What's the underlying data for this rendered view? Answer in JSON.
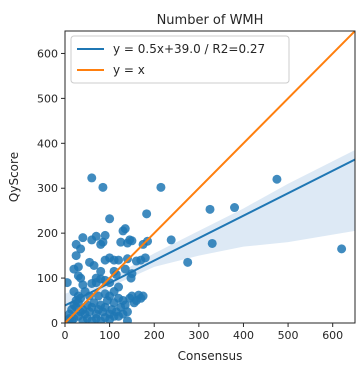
{
  "chart_data": {
    "type": "scatter",
    "title": "Number of WMH",
    "xlabel": "Consensus",
    "ylabel": "QyScore",
    "xlim": [
      0,
      650
    ],
    "ylim": [
      0,
      650
    ],
    "xticks": [
      0,
      100,
      200,
      300,
      400,
      500,
      600
    ],
    "yticks": [
      0,
      100,
      200,
      300,
      400,
      500,
      600
    ],
    "grid": false,
    "legend_position": "top-left",
    "colors": {
      "points": "#1f77b4",
      "fit": "#1f77b4",
      "identity": "#ff7f0e",
      "band": "#c6dbef"
    },
    "fit": {
      "label": "y = 0.5x+39.0 / R2=0.27",
      "slope": 0.5,
      "intercept": 39.0
    },
    "identity": {
      "label": "y = x"
    },
    "band": {
      "x": [
        0,
        100,
        200,
        300,
        400,
        500,
        650
      ],
      "lower": [
        25,
        80,
        125,
        150,
        170,
        180,
        205
      ],
      "upper": [
        65,
        100,
        155,
        205,
        255,
        310,
        385
      ]
    },
    "points": [
      [
        5,
        90
      ],
      [
        60,
        323
      ],
      [
        85,
        302
      ],
      [
        215,
        302
      ],
      [
        475,
        320
      ],
      [
        620,
        165
      ],
      [
        325,
        253
      ],
      [
        380,
        257
      ],
      [
        330,
        177
      ],
      [
        275,
        135
      ],
      [
        238,
        185
      ],
      [
        183,
        243
      ],
      [
        185,
        182
      ],
      [
        175,
        175
      ],
      [
        180,
        145
      ],
      [
        170,
        140
      ],
      [
        160,
        138
      ],
      [
        145,
        185
      ],
      [
        135,
        210
      ],
      [
        130,
        205
      ],
      [
        125,
        180
      ],
      [
        140,
        178
      ],
      [
        150,
        183
      ],
      [
        140,
        143
      ],
      [
        135,
        120
      ],
      [
        150,
        110
      ],
      [
        148,
        100
      ],
      [
        100,
        232
      ],
      [
        90,
        195
      ],
      [
        85,
        180
      ],
      [
        80,
        175
      ],
      [
        70,
        193
      ],
      [
        60,
        185
      ],
      [
        40,
        190
      ],
      [
        35,
        165
      ],
      [
        25,
        175
      ],
      [
        30,
        125
      ],
      [
        20,
        120
      ],
      [
        25,
        150
      ],
      [
        55,
        135
      ],
      [
        65,
        128
      ],
      [
        70,
        100
      ],
      [
        80,
        115
      ],
      [
        90,
        140
      ],
      [
        100,
        145
      ],
      [
        110,
        140
      ],
      [
        110,
        115
      ],
      [
        120,
        140
      ],
      [
        115,
        108
      ],
      [
        120,
        80
      ],
      [
        100,
        90
      ],
      [
        90,
        95
      ],
      [
        80,
        98
      ],
      [
        70,
        90
      ],
      [
        60,
        88
      ],
      [
        40,
        85
      ],
      [
        35,
        100
      ],
      [
        30,
        105
      ],
      [
        20,
        70
      ],
      [
        30,
        60
      ],
      [
        35,
        55
      ],
      [
        25,
        50
      ],
      [
        20,
        40
      ],
      [
        15,
        30
      ],
      [
        10,
        20
      ],
      [
        20,
        10
      ],
      [
        15,
        5
      ],
      [
        30,
        15
      ],
      [
        35,
        25
      ],
      [
        40,
        30
      ],
      [
        45,
        20
      ],
      [
        50,
        10
      ],
      [
        55,
        25
      ],
      [
        60,
        35
      ],
      [
        65,
        45
      ],
      [
        70,
        20
      ],
      [
        75,
        30
      ],
      [
        80,
        40
      ],
      [
        85,
        25
      ],
      [
        90,
        35
      ],
      [
        95,
        50
      ],
      [
        100,
        20
      ],
      [
        105,
        30
      ],
      [
        110,
        45
      ],
      [
        115,
        25
      ],
      [
        120,
        15
      ],
      [
        125,
        35
      ],
      [
        130,
        50
      ],
      [
        135,
        40
      ],
      [
        140,
        25
      ],
      [
        145,
        55
      ],
      [
        150,
        60
      ],
      [
        155,
        45
      ],
      [
        160,
        50
      ],
      [
        165,
        62
      ],
      [
        170,
        55
      ],
      [
        175,
        60
      ],
      [
        40,
        5
      ],
      [
        50,
        40
      ],
      [
        55,
        60
      ],
      [
        45,
        70
      ],
      [
        60,
        5
      ],
      [
        70,
        10
      ],
      [
        80,
        5
      ],
      [
        90,
        12
      ],
      [
        100,
        8
      ],
      [
        110,
        15
      ],
      [
        130,
        20
      ],
      [
        140,
        5
      ],
      [
        5,
        5
      ],
      [
        10,
        10
      ],
      [
        25,
        35
      ],
      [
        30,
        45
      ],
      [
        100,
        60
      ],
      [
        90,
        65
      ],
      [
        75,
        60
      ],
      [
        120,
        55
      ],
      [
        110,
        70
      ]
    ]
  }
}
